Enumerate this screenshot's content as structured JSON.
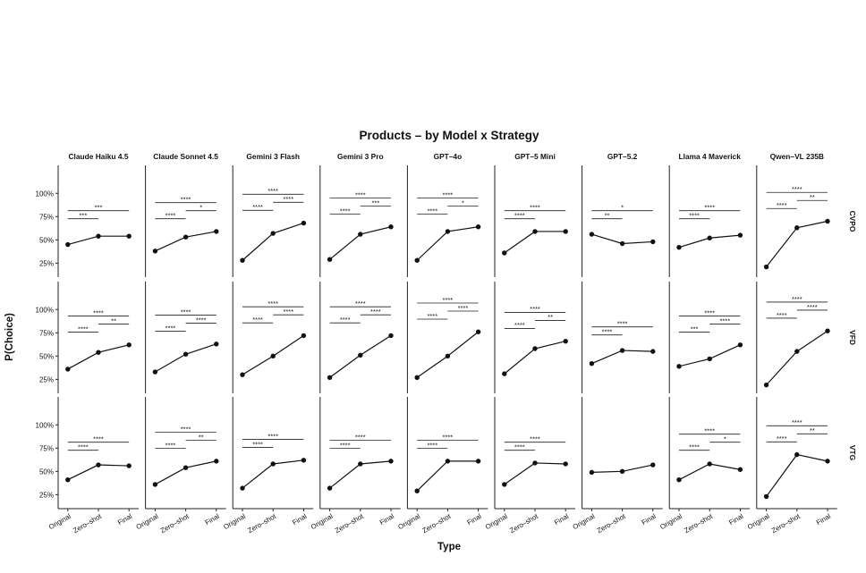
{
  "page": {
    "caption_top": "",
    "caption_bottom": ""
  },
  "chart_data": {
    "type": "line",
    "title": "Products – by Model x Strategy",
    "xlabel": "Type",
    "ylabel": "P(Choice)",
    "categories": [
      "Original",
      "Zero–shot",
      "Final"
    ],
    "y_ticks": [
      "25%",
      "50%",
      "75%",
      "100%"
    ],
    "ylim": [
      0.1,
      1.3
    ],
    "grid": false,
    "models": [
      "Claude Haiku 4.5",
      "Claude Sonnet 4.5",
      "Gemini 3 Flash",
      "Gemini 3 Pro",
      "GPT–4o",
      "GPT–5 Mini",
      "GPT–5.2",
      "Llama 4 Maverick",
      "Qwen–VL 235B"
    ],
    "strategies": [
      "CVPO",
      "VFD",
      "VTG"
    ],
    "panels": [
      {
        "model": "Claude Haiku 4.5",
        "strategy": "CVPO",
        "values": [
          0.45,
          0.54,
          0.54
        ],
        "sig": [
          {
            "from": 0,
            "to": 1,
            "label": "***"
          },
          {
            "from": 0,
            "to": 2,
            "label": "***"
          }
        ]
      },
      {
        "model": "Claude Sonnet 4.5",
        "strategy": "CVPO",
        "values": [
          0.38,
          0.53,
          0.59
        ],
        "sig": [
          {
            "from": 0,
            "to": 1,
            "label": "****"
          },
          {
            "from": 0,
            "to": 2,
            "label": "****"
          },
          {
            "from": 1,
            "to": 2,
            "label": "*"
          }
        ]
      },
      {
        "model": "Gemini 3 Flash",
        "strategy": "CVPO",
        "values": [
          0.28,
          0.57,
          0.68
        ],
        "sig": [
          {
            "from": 0,
            "to": 1,
            "label": "****"
          },
          {
            "from": 0,
            "to": 2,
            "label": "****"
          },
          {
            "from": 1,
            "to": 2,
            "label": "****"
          }
        ]
      },
      {
        "model": "Gemini 3 Pro",
        "strategy": "CVPO",
        "values": [
          0.29,
          0.56,
          0.64
        ],
        "sig": [
          {
            "from": 0,
            "to": 1,
            "label": "****"
          },
          {
            "from": 0,
            "to": 2,
            "label": "****"
          },
          {
            "from": 1,
            "to": 2,
            "label": "***"
          }
        ]
      },
      {
        "model": "GPT–4o",
        "strategy": "CVPO",
        "values": [
          0.28,
          0.59,
          0.64
        ],
        "sig": [
          {
            "from": 0,
            "to": 1,
            "label": "****"
          },
          {
            "from": 0,
            "to": 2,
            "label": "****"
          },
          {
            "from": 1,
            "to": 2,
            "label": "*"
          }
        ]
      },
      {
        "model": "GPT–5 Mini",
        "strategy": "CVPO",
        "values": [
          0.36,
          0.59,
          0.59
        ],
        "sig": [
          {
            "from": 0,
            "to": 1,
            "label": "****"
          },
          {
            "from": 0,
            "to": 2,
            "label": "****"
          }
        ]
      },
      {
        "model": "GPT–5.2",
        "strategy": "CVPO",
        "values": [
          0.56,
          0.46,
          0.48
        ],
        "sig": [
          {
            "from": 0,
            "to": 1,
            "label": "**"
          },
          {
            "from": 0,
            "to": 2,
            "label": "*"
          }
        ]
      },
      {
        "model": "Llama 4 Maverick",
        "strategy": "CVPO",
        "values": [
          0.42,
          0.52,
          0.55
        ],
        "sig": [
          {
            "from": 0,
            "to": 1,
            "label": "****"
          },
          {
            "from": 0,
            "to": 2,
            "label": "****"
          }
        ]
      },
      {
        "model": "Qwen–VL 235B",
        "strategy": "CVPO",
        "values": [
          0.21,
          0.63,
          0.7
        ],
        "sig": [
          {
            "from": 0,
            "to": 1,
            "label": "****"
          },
          {
            "from": 0,
            "to": 2,
            "label": "****"
          },
          {
            "from": 1,
            "to": 2,
            "label": "**"
          }
        ]
      },
      {
        "model": "Claude Haiku 4.5",
        "strategy": "VFD",
        "values": [
          0.36,
          0.54,
          0.62
        ],
        "sig": [
          {
            "from": 0,
            "to": 1,
            "label": "****"
          },
          {
            "from": 0,
            "to": 2,
            "label": "****"
          },
          {
            "from": 1,
            "to": 2,
            "label": "**"
          }
        ]
      },
      {
        "model": "Claude Sonnet 4.5",
        "strategy": "VFD",
        "values": [
          0.33,
          0.52,
          0.63
        ],
        "sig": [
          {
            "from": 0,
            "to": 1,
            "label": "****"
          },
          {
            "from": 0,
            "to": 2,
            "label": "****"
          },
          {
            "from": 1,
            "to": 2,
            "label": "****"
          }
        ]
      },
      {
        "model": "Gemini 3 Flash",
        "strategy": "VFD",
        "values": [
          0.3,
          0.5,
          0.72
        ],
        "sig": [
          {
            "from": 0,
            "to": 1,
            "label": "****"
          },
          {
            "from": 0,
            "to": 2,
            "label": "****"
          },
          {
            "from": 1,
            "to": 2,
            "label": "****"
          }
        ]
      },
      {
        "model": "Gemini 3 Pro",
        "strategy": "VFD",
        "values": [
          0.27,
          0.51,
          0.72
        ],
        "sig": [
          {
            "from": 0,
            "to": 1,
            "label": "****"
          },
          {
            "from": 0,
            "to": 2,
            "label": "****"
          },
          {
            "from": 1,
            "to": 2,
            "label": "****"
          }
        ]
      },
      {
        "model": "GPT–4o",
        "strategy": "VFD",
        "values": [
          0.27,
          0.5,
          0.76
        ],
        "sig": [
          {
            "from": 0,
            "to": 1,
            "label": "****"
          },
          {
            "from": 0,
            "to": 2,
            "label": "****"
          },
          {
            "from": 1,
            "to": 2,
            "label": "****"
          }
        ]
      },
      {
        "model": "GPT–5 Mini",
        "strategy": "VFD",
        "values": [
          0.31,
          0.58,
          0.66
        ],
        "sig": [
          {
            "from": 0,
            "to": 1,
            "label": "****"
          },
          {
            "from": 0,
            "to": 2,
            "label": "****"
          },
          {
            "from": 1,
            "to": 2,
            "label": "**"
          }
        ]
      },
      {
        "model": "GPT–5.2",
        "strategy": "VFD",
        "values": [
          0.42,
          0.56,
          0.55
        ],
        "sig": [
          {
            "from": 0,
            "to": 1,
            "label": "****"
          },
          {
            "from": 0,
            "to": 2,
            "label": "****"
          }
        ]
      },
      {
        "model": "Llama 4 Maverick",
        "strategy": "VFD",
        "values": [
          0.39,
          0.47,
          0.62
        ],
        "sig": [
          {
            "from": 0,
            "to": 1,
            "label": "***"
          },
          {
            "from": 0,
            "to": 2,
            "label": "****"
          },
          {
            "from": 1,
            "to": 2,
            "label": "****"
          }
        ]
      },
      {
        "model": "Qwen–VL 235B",
        "strategy": "VFD",
        "values": [
          0.19,
          0.55,
          0.77
        ],
        "sig": [
          {
            "from": 0,
            "to": 1,
            "label": "****"
          },
          {
            "from": 0,
            "to": 2,
            "label": "****"
          },
          {
            "from": 1,
            "to": 2,
            "label": "****"
          }
        ]
      },
      {
        "model": "Claude Haiku 4.5",
        "strategy": "VTG",
        "values": [
          0.41,
          0.57,
          0.56
        ],
        "sig": [
          {
            "from": 0,
            "to": 1,
            "label": "****"
          },
          {
            "from": 0,
            "to": 2,
            "label": "****"
          }
        ]
      },
      {
        "model": "Claude Sonnet 4.5",
        "strategy": "VTG",
        "values": [
          0.36,
          0.54,
          0.61
        ],
        "sig": [
          {
            "from": 0,
            "to": 1,
            "label": "****"
          },
          {
            "from": 0,
            "to": 2,
            "label": "****"
          },
          {
            "from": 1,
            "to": 2,
            "label": "**"
          }
        ]
      },
      {
        "model": "Gemini 3 Flash",
        "strategy": "VTG",
        "values": [
          0.32,
          0.58,
          0.62
        ],
        "sig": [
          {
            "from": 0,
            "to": 1,
            "label": "****"
          },
          {
            "from": 0,
            "to": 2,
            "label": "****"
          }
        ]
      },
      {
        "model": "Gemini 3 Pro",
        "strategy": "VTG",
        "values": [
          0.32,
          0.58,
          0.61
        ],
        "sig": [
          {
            "from": 0,
            "to": 1,
            "label": "****"
          },
          {
            "from": 0,
            "to": 2,
            "label": "****"
          }
        ]
      },
      {
        "model": "GPT–4o",
        "strategy": "VTG",
        "values": [
          0.29,
          0.61,
          0.61
        ],
        "sig": [
          {
            "from": 0,
            "to": 1,
            "label": "****"
          },
          {
            "from": 0,
            "to": 2,
            "label": "****"
          }
        ]
      },
      {
        "model": "GPT–5 Mini",
        "strategy": "VTG",
        "values": [
          0.36,
          0.59,
          0.58
        ],
        "sig": [
          {
            "from": 0,
            "to": 1,
            "label": "****"
          },
          {
            "from": 0,
            "to": 2,
            "label": "****"
          }
        ]
      },
      {
        "model": "GPT–5.2",
        "strategy": "VTG",
        "values": [
          0.49,
          0.5,
          0.57
        ],
        "sig": []
      },
      {
        "model": "Llama 4 Maverick",
        "strategy": "VTG",
        "values": [
          0.41,
          0.58,
          0.52
        ],
        "sig": [
          {
            "from": 0,
            "to": 1,
            "label": "****"
          },
          {
            "from": 0,
            "to": 2,
            "label": "****"
          },
          {
            "from": 1,
            "to": 2,
            "label": "*"
          }
        ]
      },
      {
        "model": "Qwen–VL 235B",
        "strategy": "VTG",
        "values": [
          0.23,
          0.68,
          0.61
        ],
        "sig": [
          {
            "from": 0,
            "to": 1,
            "label": "****"
          },
          {
            "from": 0,
            "to": 2,
            "label": "****"
          },
          {
            "from": 1,
            "to": 2,
            "label": "**"
          }
        ]
      }
    ]
  }
}
